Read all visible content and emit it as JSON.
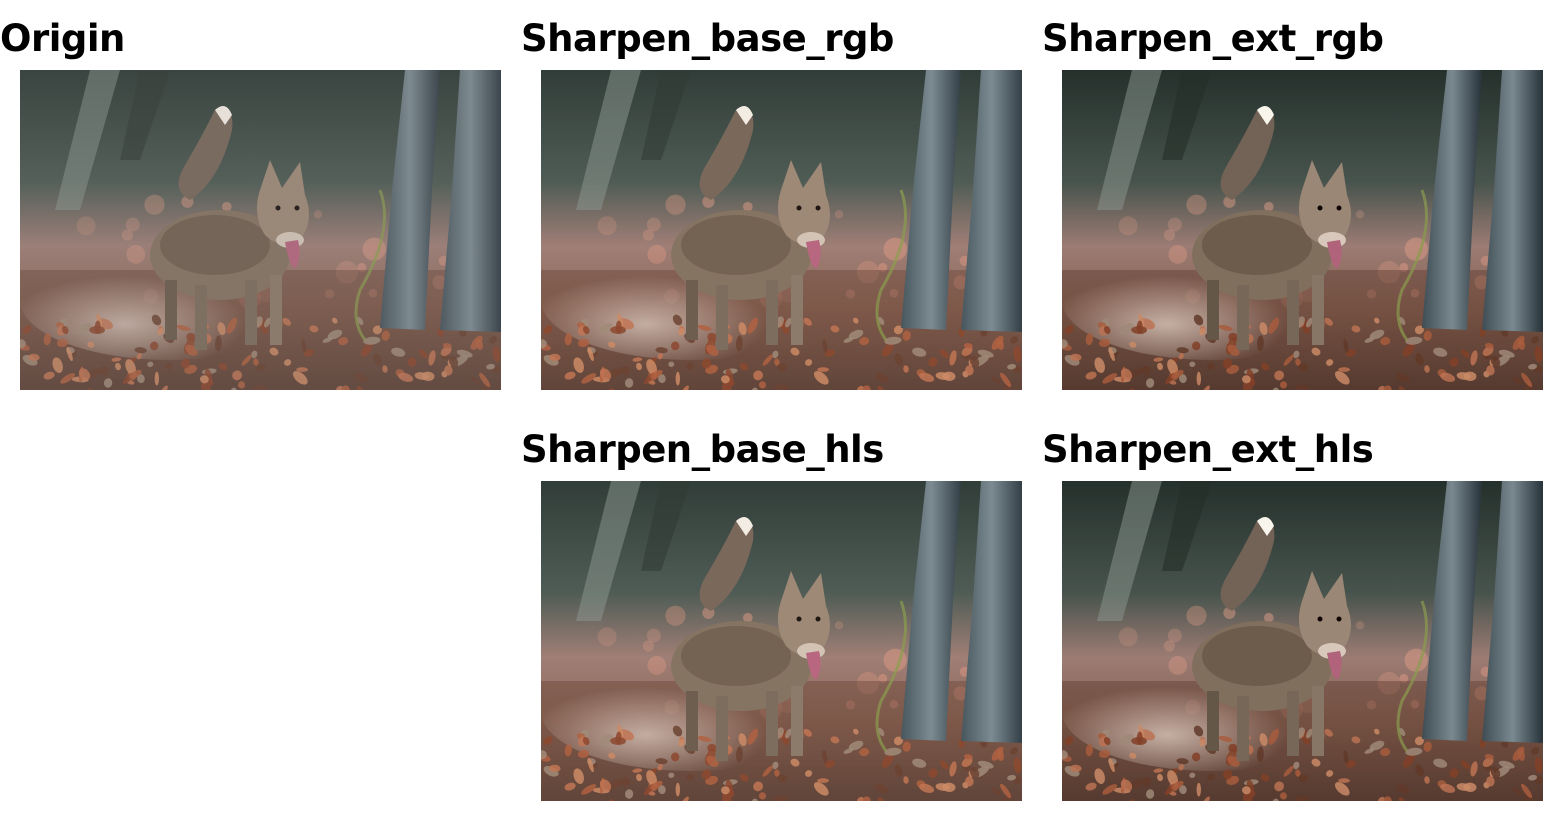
{
  "panels": [
    {
      "title": "Origin",
      "image": "coyote-photo"
    },
    {
      "title": "Sharpen_base_rgb",
      "image": "coyote-photo"
    },
    {
      "title": "Sharpen_ext_rgb",
      "image": "coyote-photo"
    },
    {
      "title": "Sharpen_base_hls",
      "image": "coyote-photo"
    },
    {
      "title": "Sharpen_ext_hls",
      "image": "coyote-photo"
    }
  ]
}
